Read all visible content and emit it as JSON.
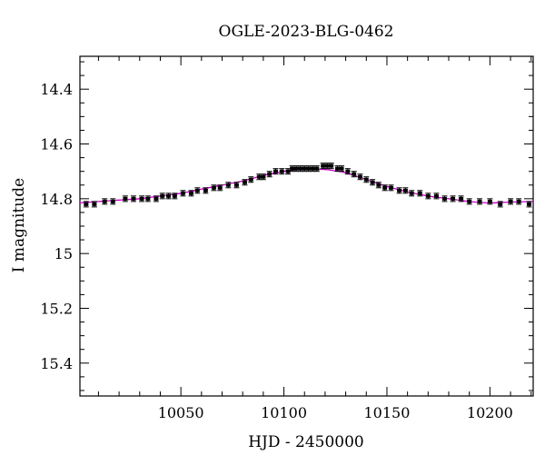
{
  "chart_data": {
    "type": "scatter",
    "title": "OGLE-2023-BLG-0462",
    "xlabel": "HJD - 2450000",
    "ylabel": "I magnitude",
    "xlim": [
      10001,
      10221
    ],
    "ylim": [
      15.52,
      14.28
    ],
    "y_inverted": true,
    "xticks": [
      10050,
      10100,
      10150,
      10200
    ],
    "xtick_labels": [
      "10050",
      "10100",
      "10150",
      "10200"
    ],
    "yticks": [
      14.4,
      14.6,
      14.8,
      15,
      15.2,
      15.4
    ],
    "ytick_labels": [
      "14.4",
      "14.6",
      "14.8",
      "15",
      "15.2",
      "15.4"
    ],
    "grid": false,
    "colors": {
      "points": "#000000",
      "model": "#cc00cc"
    },
    "series": [
      {
        "kind": "points_with_errorbars",
        "x": [
          10004,
          10008,
          10013,
          10017,
          10023,
          10027,
          10031,
          10034,
          10038,
          10041,
          10044,
          10047,
          10051,
          10055,
          10058,
          10062,
          10066,
          10069,
          10073,
          10077,
          10081,
          10084,
          10088,
          10090,
          10093,
          10096,
          10099,
          10102,
          10104,
          10106,
          10108,
          10110,
          10112,
          10114,
          10116,
          10119,
          10121,
          10123,
          10126,
          10128,
          10131,
          10134,
          10137,
          10140,
          10143,
          10146,
          10149,
          10152,
          10156,
          10159,
          10162,
          10166,
          10170,
          10174,
          10178,
          10182,
          10186,
          10190,
          10195,
          10200,
          10205,
          10210,
          10214,
          10219
        ],
        "y": [
          14.82,
          14.82,
          14.81,
          14.81,
          14.8,
          14.8,
          14.8,
          14.8,
          14.8,
          14.79,
          14.79,
          14.79,
          14.78,
          14.78,
          14.77,
          14.77,
          14.76,
          14.76,
          14.75,
          14.75,
          14.74,
          14.73,
          14.72,
          14.72,
          14.71,
          14.7,
          14.7,
          14.7,
          14.69,
          14.69,
          14.69,
          14.69,
          14.69,
          14.69,
          14.69,
          14.68,
          14.68,
          14.68,
          14.69,
          14.69,
          14.7,
          14.71,
          14.72,
          14.73,
          14.74,
          14.75,
          14.76,
          14.76,
          14.77,
          14.77,
          14.78,
          14.78,
          14.79,
          14.79,
          14.8,
          14.8,
          14.8,
          14.81,
          14.81,
          14.81,
          14.82,
          14.81,
          14.81,
          14.82
        ],
        "yerr": 0.01
      },
      {
        "kind": "model_curve",
        "x": [
          10001,
          10010,
          10020,
          10030,
          10040,
          10050,
          10060,
          10070,
          10080,
          10090,
          10100,
          10105,
          10110,
          10115,
          10120,
          10125,
          10130,
          10140,
          10150,
          10160,
          10170,
          10180,
          10190,
          10200,
          10210,
          10221
        ],
        "y": [
          14.815,
          14.81,
          14.805,
          14.8,
          14.79,
          14.78,
          14.765,
          14.75,
          14.735,
          14.715,
          14.7,
          14.695,
          14.692,
          14.692,
          14.693,
          14.698,
          14.705,
          14.73,
          14.755,
          14.775,
          14.79,
          14.8,
          14.81,
          14.815,
          14.812,
          14.81
        ]
      }
    ]
  }
}
